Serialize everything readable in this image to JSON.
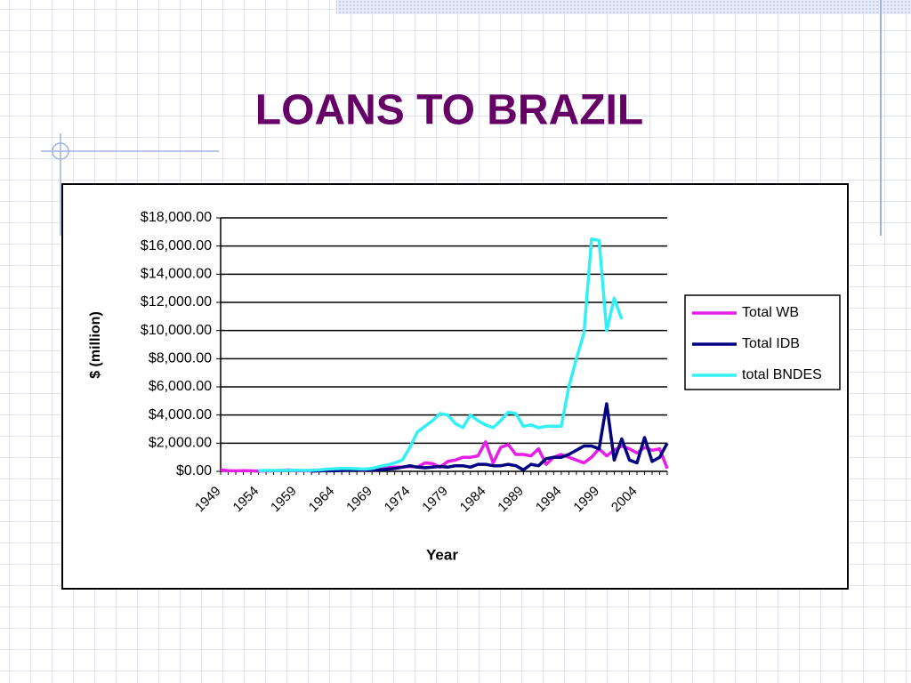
{
  "title": "LOANS TO BRAZIL",
  "chart_data": {
    "type": "line",
    "ylabel": "$ (million)",
    "xlabel": "Year",
    "categories": [
      "1949",
      null,
      null,
      null,
      null,
      "1954",
      null,
      null,
      null,
      null,
      "1959",
      null,
      null,
      null,
      null,
      "1964",
      null,
      null,
      null,
      null,
      "1969",
      null,
      null,
      null,
      null,
      "1974",
      null,
      null,
      null,
      null,
      "1979",
      null,
      null,
      null,
      null,
      "1984",
      null,
      null,
      null,
      null,
      "1989",
      null,
      null,
      null,
      null,
      "1994",
      null,
      null,
      null,
      null,
      "1999",
      null,
      null,
      null,
      null,
      "2004",
      null,
      null,
      null,
      null
    ],
    "series": [
      {
        "name": "Total WB",
        "color": "#e61ee6",
        "values": [
          100,
          50,
          30,
          50,
          40,
          20,
          30,
          40,
          60,
          100,
          50,
          40,
          30,
          60,
          80,
          100,
          120,
          150,
          100,
          80,
          150,
          200,
          250,
          300,
          300,
          350,
          300,
          600,
          550,
          300,
          700,
          800,
          1000,
          1000,
          1100,
          2100,
          600,
          1700,
          1900,
          1200,
          1200,
          1100,
          1600,
          500,
          1000,
          1200,
          1000,
          800,
          600,
          1000,
          1600,
          1100,
          1500,
          1800,
          1600,
          1300,
          1700,
          1500,
          1600,
          200
        ]
      },
      {
        "name": "Total IDB",
        "color": "#000080",
        "values": [
          null,
          null,
          null,
          null,
          null,
          null,
          null,
          null,
          null,
          null,
          null,
          null,
          20,
          30,
          50,
          40,
          60,
          80,
          100,
          100,
          80,
          100,
          150,
          200,
          300,
          400,
          300,
          250,
          300,
          350,
          300,
          400,
          400,
          300,
          500,
          500,
          400,
          400,
          500,
          400,
          100,
          500,
          400,
          900,
          1000,
          1000,
          1200,
          1500,
          1800,
          1800,
          1600,
          4800,
          800,
          2300,
          800,
          600,
          2400,
          700,
          1000,
          2000
        ]
      },
      {
        "name": "total BNDES",
        "color": "#33f0f5",
        "values": [
          null,
          null,
          null,
          null,
          null,
          50,
          60,
          60,
          70,
          80,
          80,
          60,
          80,
          100,
          150,
          180,
          200,
          200,
          180,
          160,
          200,
          350,
          450,
          600,
          800,
          1700,
          2800,
          3200,
          3600,
          4100,
          4000,
          3400,
          3100,
          4000,
          3600,
          3300,
          3100,
          3600,
          4200,
          4100,
          3200,
          3300,
          3100,
          3200,
          3200,
          3200,
          6000,
          8000,
          9800,
          16500,
          16400,
          10000,
          12300,
          10800,
          null,
          null,
          null,
          null,
          null,
          null
        ]
      }
    ],
    "ylim": [
      0,
      18000
    ],
    "yticks": [
      {
        "value": 0,
        "label": "$0.00"
      },
      {
        "value": 2000,
        "label": "$2,000.00"
      },
      {
        "value": 4000,
        "label": "$4,000.00"
      },
      {
        "value": 6000,
        "label": "$6,000.00"
      },
      {
        "value": 8000,
        "label": "$8,000.00"
      },
      {
        "value": 10000,
        "label": "$10,000.00"
      },
      {
        "value": 12000,
        "label": "$12,000.00"
      },
      {
        "value": 14000,
        "label": "$14,000.00"
      },
      {
        "value": 16000,
        "label": "$16,000.00"
      },
      {
        "value": 18000,
        "label": "$18,000.00"
      }
    ],
    "grid": true,
    "legend": "right"
  }
}
